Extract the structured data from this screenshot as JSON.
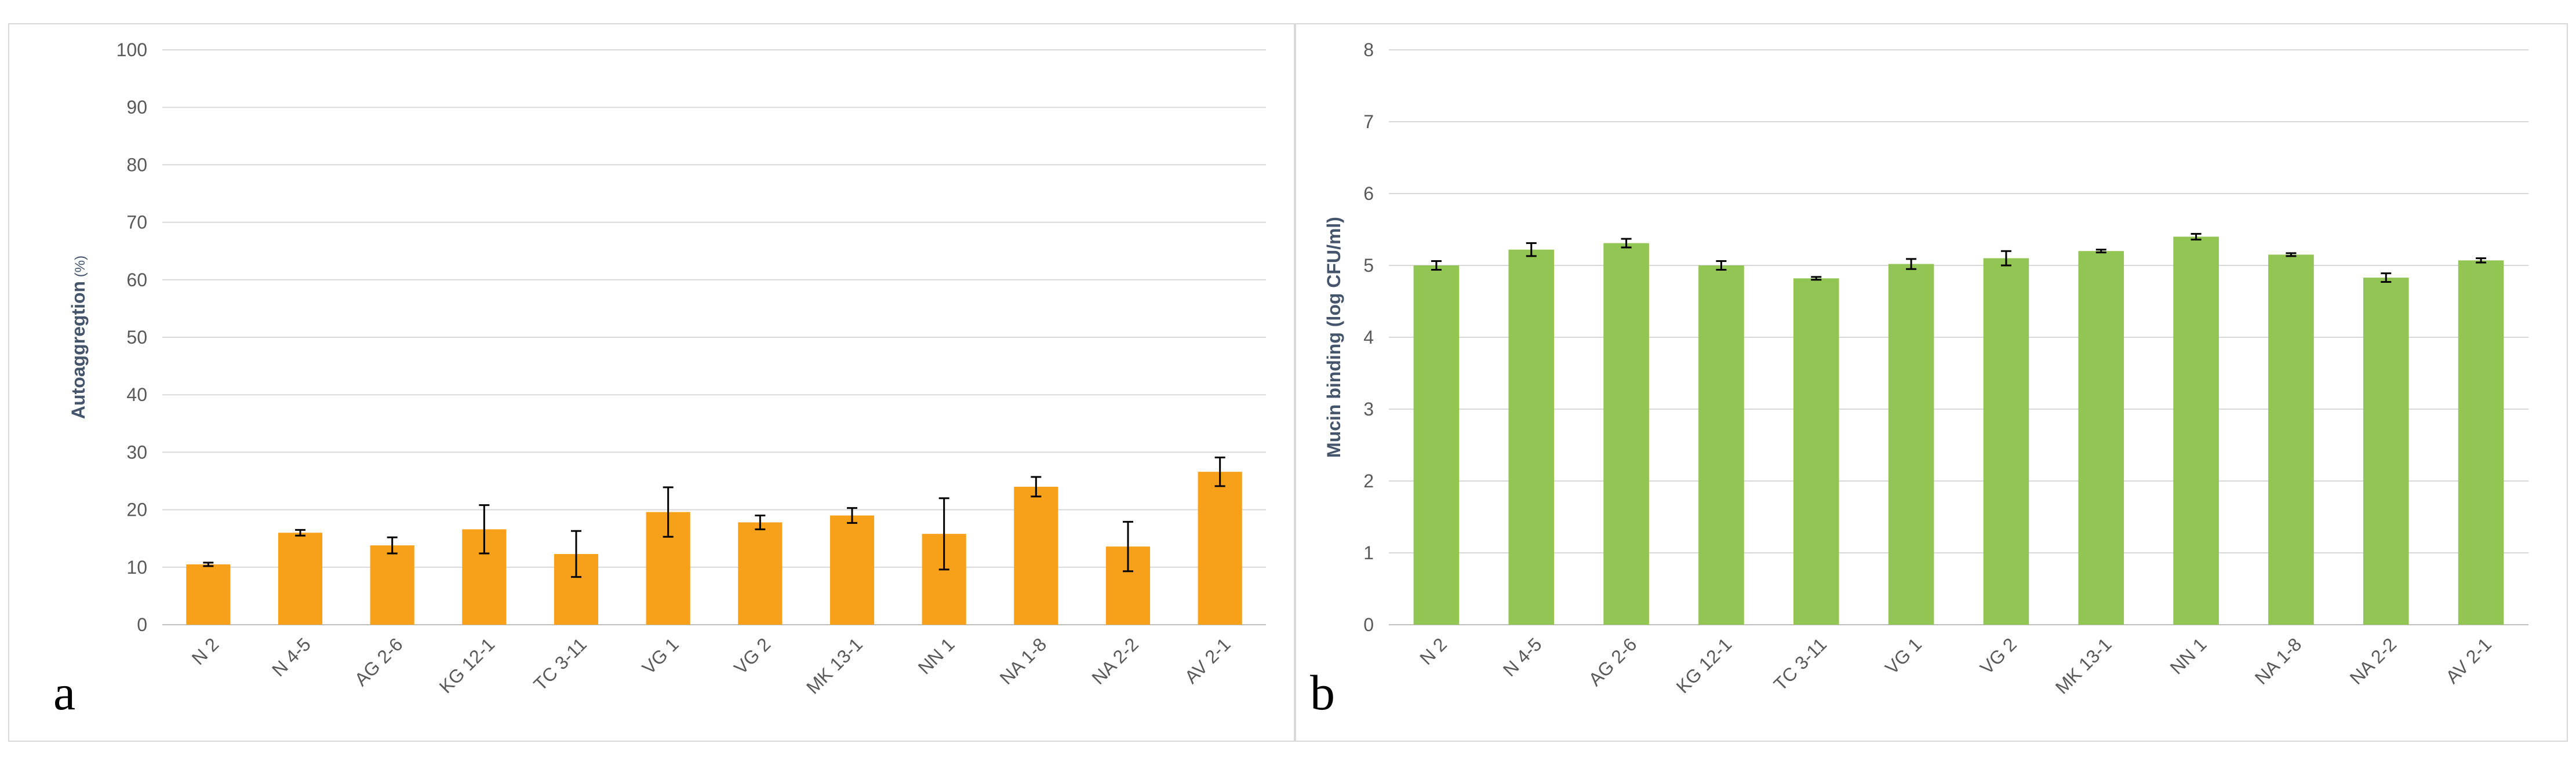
{
  "chart_data": [
    {
      "type": "bar",
      "panel_label": "a",
      "title": "",
      "xlabel": "",
      "ylabel": "Autoaggregtion",
      "ylabel_unit": "(%)",
      "color": "#F7A11A",
      "ylim": [
        0,
        100
      ],
      "ytick_step": 10,
      "grid": true,
      "categories": [
        "N 2",
        "N 4-5",
        "AG 2-6",
        "KG 12-1",
        "TC 3-11",
        "VG 1",
        "VG 2",
        "MK 13-1",
        "NN 1",
        "NA 1-8",
        "NA 2-2",
        "AV 2-1"
      ],
      "values": [
        10.5,
        16,
        13.8,
        16.6,
        12.3,
        19.6,
        17.8,
        19,
        15.8,
        24,
        13.6,
        26.6
      ],
      "errors": [
        0.3,
        0.5,
        1.4,
        4.2,
        4.0,
        4.3,
        1.2,
        1.3,
        6.2,
        1.7,
        4.3,
        2.5
      ]
    },
    {
      "type": "bar",
      "panel_label": "b",
      "title": "",
      "xlabel": "",
      "ylabel": "Mucin binding (log CFU/ml)",
      "color": "#92C553",
      "ylim": [
        0,
        8
      ],
      "ytick_step": 1,
      "grid": true,
      "categories": [
        "N 2",
        "N 4-5",
        "AG 2-6",
        "KG 12-1",
        "TC 3-11",
        "VG 1",
        "VG 2",
        "MK 13-1",
        "NN 1",
        "NA 1-8",
        "NA 2-2",
        "AV 2-1"
      ],
      "values": [
        5.0,
        5.22,
        5.31,
        5.0,
        4.82,
        5.02,
        5.1,
        5.2,
        5.4,
        5.15,
        4.83,
        5.07
      ],
      "errors": [
        0.06,
        0.09,
        0.06,
        0.06,
        0.02,
        0.07,
        0.1,
        0.02,
        0.04,
        0.02,
        0.06,
        0.03
      ]
    }
  ]
}
